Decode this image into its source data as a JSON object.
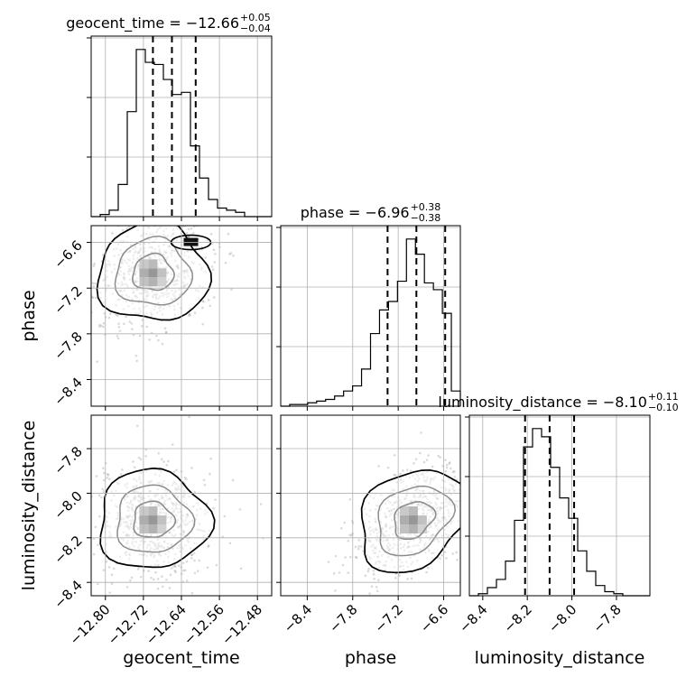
{
  "chart_data": {
    "type": "corner",
    "parameters": [
      "geocent_time",
      "phase",
      "luminosity_distance"
    ],
    "titles": [
      {
        "param": "geocent_time",
        "text": "geocent_time = −12.66",
        "plus": "+0.05",
        "minus": "−0.04"
      },
      {
        "param": "phase",
        "text": "phase = −6.96",
        "plus": "+0.38",
        "minus": "−0.38"
      },
      {
        "param": "luminosity_distance",
        "text": "luminosity_distance = −8.10",
        "plus": "+0.11",
        "minus": "−0.10"
      }
    ],
    "axes": {
      "geocent_time": {
        "range": [
          -12.83,
          -12.45
        ],
        "ticks": [
          -12.8,
          -12.72,
          -12.64,
          -12.56,
          -12.48
        ],
        "tick_labels": [
          "−12.80",
          "−12.72",
          "−12.64",
          "−12.56",
          "−12.48"
        ]
      },
      "phase": {
        "range": [
          -8.75,
          -6.38
        ],
        "ticks": [
          -8.4,
          -7.8,
          -7.2,
          -6.6
        ],
        "tick_labels": [
          "−8.4",
          "−7.8",
          "−7.2",
          "−6.6"
        ]
      },
      "luminosity_distance": {
        "range": [
          -8.46,
          -7.65
        ],
        "ticks": [
          -8.4,
          -8.2,
          -8.0,
          -7.8
        ],
        "tick_labels": [
          "−8.4",
          "−8.2",
          "−8.0",
          "−7.8"
        ]
      }
    },
    "histograms": [
      {
        "param": "geocent_time",
        "range": [
          -12.83,
          -12.45
        ],
        "counts": [
          0,
          1,
          3,
          15,
          49,
          78,
          72,
          71,
          64,
          57,
          58,
          33,
          18,
          8,
          4,
          3,
          2,
          0,
          0,
          0
        ],
        "quantiles": [
          -12.7,
          -12.66,
          -12.61
        ]
      },
      {
        "param": "phase",
        "range": [
          -8.75,
          -6.38
        ],
        "counts": [
          0,
          1,
          1,
          2,
          3,
          4,
          6,
          9,
          12,
          22,
          43,
          57,
          62,
          74,
          99,
          90,
          73,
          69,
          55,
          9
        ],
        "quantiles": [
          -7.34,
          -6.96,
          -6.58
        ]
      },
      {
        "param": "luminosity_distance",
        "range": [
          -8.46,
          -7.65
        ],
        "counts": [
          0,
          1,
          4,
          8,
          17,
          37,
          73,
          82,
          78,
          63,
          48,
          38,
          22,
          12,
          5,
          2,
          1,
          0,
          0,
          0
        ],
        "quantiles": [
          -8.21,
          -8.1,
          -7.99
        ]
      }
    ],
    "pairs": [
      {
        "x": "geocent_time",
        "y": "phase",
        "peak": [
          -12.7,
          -7.0
        ],
        "secondary_peak": [
          -12.62,
          -6.6
        ]
      },
      {
        "x": "geocent_time",
        "y": "luminosity_distance",
        "peak": [
          -12.7,
          -8.12
        ]
      },
      {
        "x": "phase",
        "y": "luminosity_distance",
        "peak": [
          -7.0,
          -8.12
        ]
      }
    ],
    "grid": true,
    "quantile_line_style": "dashed"
  }
}
